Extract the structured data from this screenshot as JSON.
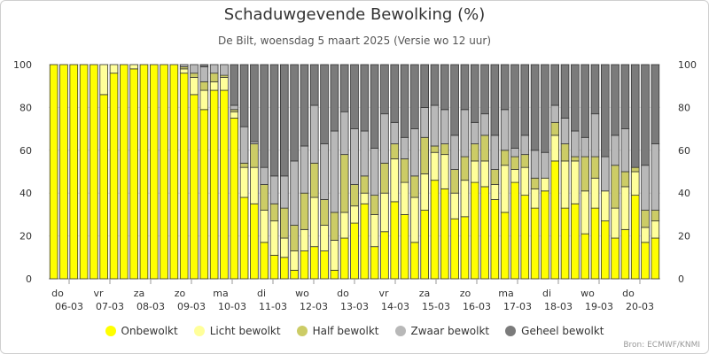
{
  "title": "Schaduwgevende Bewolking (%)",
  "subtitle": "De Bilt, woensdag 5 maart 2025 (Versie wo 12 uur)",
  "credits": "Bron: ECMWF/KNMI",
  "chart_data": {
    "type": "bar",
    "stacked": true,
    "ylim": [
      0,
      100
    ],
    "yticks": [
      0,
      20,
      40,
      60,
      80,
      100
    ],
    "x_day_labels": [
      {
        "day": "do",
        "date": "06-03"
      },
      {
        "day": "vr",
        "date": "07-03"
      },
      {
        "day": "za",
        "date": "08-03"
      },
      {
        "day": "zo",
        "date": "09-03"
      },
      {
        "day": "ma",
        "date": "10-03"
      },
      {
        "day": "di",
        "date": "11-03"
      },
      {
        "day": "wo",
        "date": "12-03"
      },
      {
        "day": "do",
        "date": "13-03"
      },
      {
        "day": "vr",
        "date": "14-03"
      },
      {
        "day": "za",
        "date": "15-03"
      },
      {
        "day": "zo",
        "date": "16-03"
      },
      {
        "day": "ma",
        "date": "17-03"
      },
      {
        "day": "di",
        "date": "18-03"
      },
      {
        "day": "wo",
        "date": "19-03"
      },
      {
        "day": "do",
        "date": "20-03"
      }
    ],
    "series": [
      {
        "name": "Onbewolkt",
        "color": "#ffff00",
        "values": [
          100,
          100,
          100,
          100,
          100,
          86,
          96,
          100,
          98,
          100,
          100,
          100,
          100,
          96,
          86,
          79,
          88,
          88,
          75,
          38,
          35,
          17,
          11,
          10,
          4,
          13,
          15,
          13,
          4,
          19,
          26,
          35,
          15,
          22,
          36,
          30,
          17,
          32,
          46,
          42,
          28,
          29,
          45,
          43,
          37,
          31,
          45,
          39,
          33,
          41,
          55,
          33,
          35,
          21,
          33,
          27,
          19,
          23,
          39,
          17,
          19
        ]
      },
      {
        "name": "Licht bewolkt",
        "color": "#ffff9a",
        "values": [
          0,
          0,
          0,
          0,
          0,
          14,
          4,
          0,
          2,
          0,
          0,
          0,
          0,
          2,
          8,
          9,
          4,
          6,
          3,
          14,
          17,
          15,
          16,
          9,
          9,
          10,
          23,
          12,
          14,
          12,
          8,
          5,
          15,
          18,
          20,
          15,
          21,
          17,
          13,
          16,
          12,
          17,
          10,
          12,
          7,
          22,
          6,
          13,
          9,
          6,
          12,
          22,
          20,
          20,
          14,
          14,
          14,
          20,
          11,
          7,
          8
        ]
      },
      {
        "name": "Half bewolkt",
        "color": "#cccc66",
        "values": [
          0,
          0,
          0,
          0,
          0,
          0,
          0,
          0,
          0,
          0,
          0,
          0,
          0,
          1,
          2,
          4,
          4,
          1,
          1,
          2,
          11,
          12,
          8,
          14,
          12,
          17,
          16,
          12,
          13,
          27,
          10,
          8,
          9,
          14,
          7,
          11,
          10,
          17,
          3,
          5,
          11,
          11,
          8,
          12,
          7,
          7,
          6,
          6,
          5,
          0,
          6,
          8,
          2,
          16,
          10,
          0,
          20,
          7,
          2,
          8,
          5
        ]
      },
      {
        "name": "Zwaar bewolkt",
        "color": "#b8b8b8",
        "values": [
          0,
          0,
          0,
          0,
          0,
          0,
          0,
          0,
          0,
          0,
          0,
          0,
          0,
          1,
          4,
          7,
          4,
          5,
          2,
          17,
          1,
          8,
          13,
          15,
          30,
          22,
          27,
          26,
          38,
          20,
          26,
          21,
          22,
          23,
          10,
          10,
          22,
          14,
          19,
          16,
          16,
          22,
          10,
          10,
          16,
          19,
          4,
          9,
          13,
          12,
          8,
          12,
          12,
          9,
          20,
          16,
          14,
          20,
          0,
          21,
          31
        ]
      },
      {
        "name": "Geheel bewolkt",
        "color": "#7b7b7b",
        "values": [
          0,
          0,
          0,
          0,
          0,
          0,
          0,
          0,
          0,
          0,
          0,
          0,
          0,
          0,
          0,
          1,
          0,
          0,
          19,
          29,
          36,
          48,
          52,
          52,
          45,
          38,
          19,
          37,
          31,
          22,
          30,
          31,
          39,
          23,
          27,
          34,
          30,
          20,
          19,
          21,
          33,
          21,
          27,
          23,
          33,
          21,
          39,
          33,
          40,
          41,
          19,
          25,
          31,
          34,
          23,
          43,
          33,
          30,
          48,
          47,
          37
        ]
      }
    ]
  }
}
